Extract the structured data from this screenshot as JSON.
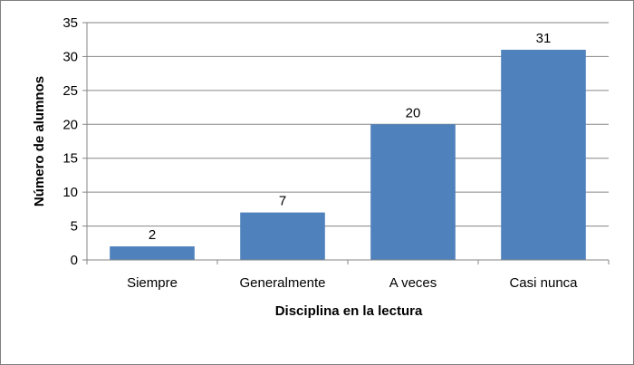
{
  "chart_data": {
    "type": "bar",
    "categories": [
      "Siempre",
      "Generalmente",
      "A veces",
      "Casi nunca"
    ],
    "values": [
      2,
      7,
      20,
      31
    ],
    "data_labels": [
      "2",
      "7",
      "20",
      "31"
    ],
    "title": "",
    "xlabel": "Disciplina en la lectura",
    "ylabel": "Número de alumnos",
    "ylim": [
      0,
      35
    ],
    "yticks": [
      0,
      5,
      10,
      15,
      20,
      25,
      30,
      35
    ],
    "grid": true,
    "legend": "none",
    "bar_color": "#4f81bd",
    "grid_color": "#868686"
  }
}
